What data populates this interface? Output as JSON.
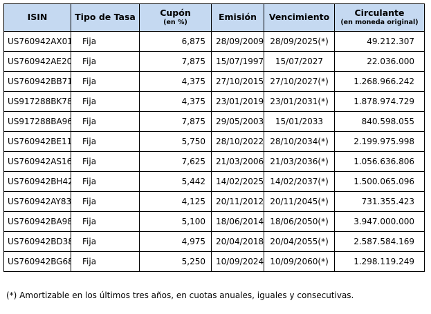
{
  "table": {
    "headers": {
      "isin": "ISIN",
      "tipo": "Tipo de Tasa",
      "cupon": "Cupón",
      "cupon_sub": "(en %)",
      "emision": "Emisión",
      "vencimiento": "Vencimiento",
      "circulante": "Circulante",
      "circulante_sub": "(en moneda original)"
    },
    "rows": [
      {
        "isin": "US760942AX01",
        "tipo": "Fija",
        "cupon": "6,875",
        "emision": "28/09/2009",
        "vencimiento": "28/09/2025(*)",
        "circulante": "49.212.307"
      },
      {
        "isin": "US760942AE20",
        "tipo": "Fija",
        "cupon": "7,875",
        "emision": "15/07/1997",
        "vencimiento": "15/07/2027",
        "circulante": "22.036.000"
      },
      {
        "isin": "US760942BB71",
        "tipo": "Fija",
        "cupon": "4,375",
        "emision": "27/10/2015",
        "vencimiento": "27/10/2027(*)",
        "circulante": "1.268.966.242"
      },
      {
        "isin": "US917288BK78",
        "tipo": "Fija",
        "cupon": "4,375",
        "emision": "23/01/2019",
        "vencimiento": "23/01/2031(*)",
        "circulante": "1.878.974.729"
      },
      {
        "isin": "US917288BA96",
        "tipo": "Fija",
        "cupon": "7,875",
        "emision": "29/05/2003",
        "vencimiento": "15/01/2033",
        "circulante": "840.598.055"
      },
      {
        "isin": "US760942BE11",
        "tipo": "Fija",
        "cupon": "5,750",
        "emision": "28/10/2022",
        "vencimiento": "28/10/2034(*)",
        "circulante": "2.199.975.998"
      },
      {
        "isin": "US760942AS16",
        "tipo": "Fija",
        "cupon": "7,625",
        "emision": "21/03/2006",
        "vencimiento": "21/03/2036(*)",
        "circulante": "1.056.636.806"
      },
      {
        "isin": "US760942BH42",
        "tipo": "Fija",
        "cupon": "5,442",
        "emision": "14/02/2025",
        "vencimiento": "14/02/2037(*)",
        "circulante": "1.500.065.096"
      },
      {
        "isin": "US760942AY83",
        "tipo": "Fija",
        "cupon": "4,125",
        "emision": "20/11/2012",
        "vencimiento": "20/11/2045(*)",
        "circulante": "731.355.423"
      },
      {
        "isin": "US760942BA98",
        "tipo": "Fija",
        "cupon": "5,100",
        "emision": "18/06/2014",
        "vencimiento": "18/06/2050(*)",
        "circulante": "3.947.000.000"
      },
      {
        "isin": "US760942BD38",
        "tipo": "Fija",
        "cupon": "4,975",
        "emision": "20/04/2018",
        "vencimiento": "20/04/2055(*)",
        "circulante": "2.587.584.169"
      },
      {
        "isin": "US760942BG68",
        "tipo": "Fija",
        "cupon": "5,250",
        "emision": "10/09/2024",
        "vencimiento": "10/09/2060(*)",
        "circulante": "1.298.119.249"
      }
    ]
  },
  "footnote": "(*) Amortizable en los últimos tres años, en cuotas anuales, iguales y consecutivas.",
  "colors": {
    "header_bg": "#c5d9f1",
    "border": "#000000"
  }
}
